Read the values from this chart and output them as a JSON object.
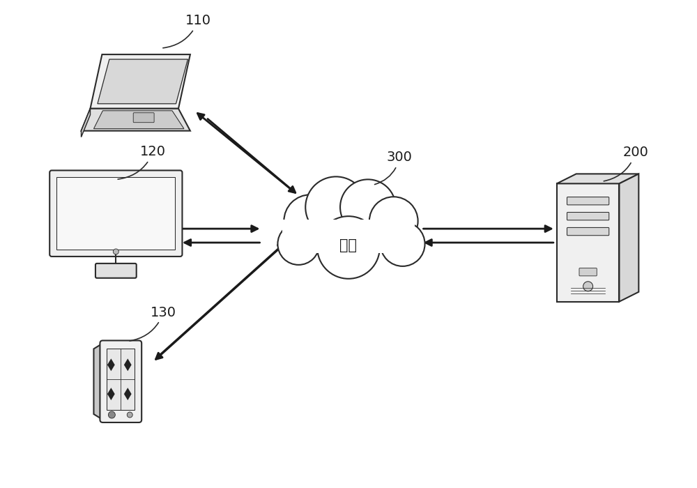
{
  "background_color": "#ffffff",
  "cloud_label": "网络",
  "cloud_label_fontsize": 15,
  "label_300": "300",
  "label_110": "110",
  "label_120": "120",
  "label_130": "130",
  "label_200": "200",
  "label_fontsize": 14,
  "arrow_color": "#1a1a1a",
  "arrow_lw": 2.0,
  "lc": "#2a2a2a",
  "lw": 1.5,
  "figsize": [
    10,
    7
  ],
  "dpi": 100,
  "xlim": [
    0,
    10
  ],
  "ylim": [
    0,
    7
  ]
}
